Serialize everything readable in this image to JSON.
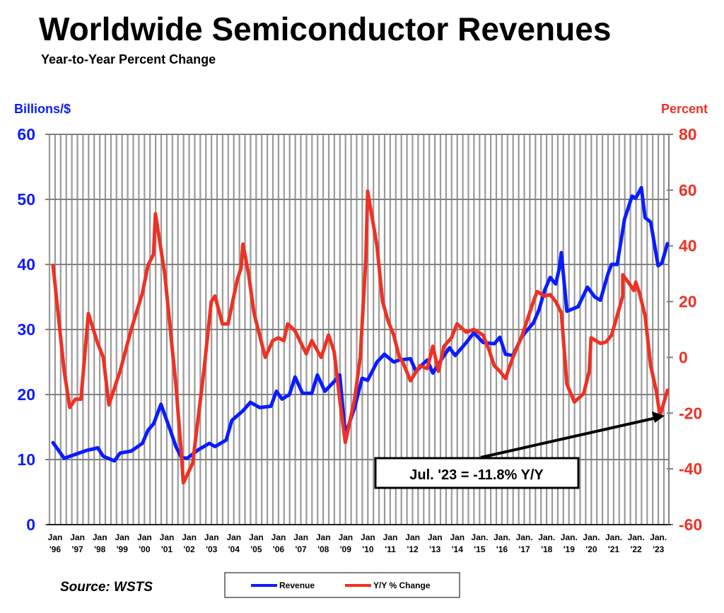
{
  "chart_data": {
    "type": "line",
    "title": "Worldwide Semiconductor Revenues",
    "subtitle": "Year-to-Year Percent Change",
    "ylabel_left": "Billions/$",
    "ylabel_right": "Percent",
    "ylim_left": [
      0,
      60
    ],
    "ylim_right": [
      -60,
      80
    ],
    "yticks_left": [
      "0",
      "10",
      "20",
      "30",
      "40",
      "50",
      "60"
    ],
    "yticks_right": [
      "-60",
      "-40",
      "-20",
      "0",
      "20",
      "40",
      "60",
      "80"
    ],
    "xlim": [
      "1996-01",
      "2023-07"
    ],
    "xticks": [
      [
        "Jan",
        "'96"
      ],
      [
        "Jan",
        "'97"
      ],
      [
        "Jan",
        "'98"
      ],
      [
        "Jan",
        "'99"
      ],
      [
        "Jan",
        "'00"
      ],
      [
        "Jan",
        "'01"
      ],
      [
        "Jan",
        "'02"
      ],
      [
        "Jan",
        "'03"
      ],
      [
        "Jan",
        "'04"
      ],
      [
        "Jan",
        "'05"
      ],
      [
        "Jan",
        "'06"
      ],
      [
        "Jan",
        "'07"
      ],
      [
        "Jan",
        "'08"
      ],
      [
        "Jan",
        "'09"
      ],
      [
        "Jan",
        "'10"
      ],
      [
        "Jan",
        "'11"
      ],
      [
        "Jan",
        "'12"
      ],
      [
        "Jan",
        "'13"
      ],
      [
        "Jan",
        "'14"
      ],
      [
        "Jan.",
        "'15"
      ],
      [
        "Jan.",
        "'16"
      ],
      [
        "Jan.",
        "'17"
      ],
      [
        "Jan.",
        "'18"
      ],
      [
        "Jan.",
        "'19"
      ],
      [
        "Jan.",
        "'20"
      ],
      [
        "Jan.",
        "'21"
      ],
      [
        "Jan.",
        "'22"
      ],
      [
        "Jan.",
        "'23"
      ]
    ],
    "grid": {
      "vertical": "quarterly",
      "horizontal": true
    },
    "legend_placement": "bottom-center",
    "series": [
      {
        "name": "Revenue",
        "axis": "left",
        "color": "#0a1cff",
        "points": [
          [
            "1996-01",
            12.6
          ],
          [
            "1996-07",
            10.2
          ],
          [
            "1997-01",
            10.8
          ],
          [
            "1997-07",
            11.4
          ],
          [
            "1998-01",
            11.8
          ],
          [
            "1998-04",
            10.5
          ],
          [
            "1998-10",
            9.8
          ],
          [
            "1999-01",
            11.0
          ],
          [
            "1999-07",
            11.3
          ],
          [
            "2000-01",
            12.5
          ],
          [
            "2000-04",
            14.5
          ],
          [
            "2000-07",
            15.5
          ],
          [
            "2000-11",
            18.5
          ],
          [
            "2001-04",
            14.5
          ],
          [
            "2001-07",
            12.0
          ],
          [
            "2001-10",
            10.3
          ],
          [
            "2002-01",
            10.2
          ],
          [
            "2002-07",
            11.5
          ],
          [
            "2003-01",
            12.5
          ],
          [
            "2003-04",
            12.0
          ],
          [
            "2003-10",
            13.0
          ],
          [
            "2004-01",
            16.0
          ],
          [
            "2004-07",
            17.5
          ],
          [
            "2004-11",
            18.8
          ],
          [
            "2005-04",
            18.0
          ],
          [
            "2005-10",
            18.2
          ],
          [
            "2006-01",
            20.5
          ],
          [
            "2006-04",
            19.3
          ],
          [
            "2006-08",
            20.0
          ],
          [
            "2006-11",
            22.7
          ],
          [
            "2007-03",
            20.2
          ],
          [
            "2007-08",
            20.2
          ],
          [
            "2007-11",
            23.0
          ],
          [
            "2008-03",
            20.5
          ],
          [
            "2008-08",
            22.0
          ],
          [
            "2008-11",
            23.0
          ],
          [
            "2009-02",
            13.8
          ],
          [
            "2009-07",
            18.0
          ],
          [
            "2009-11",
            22.5
          ],
          [
            "2010-02",
            22.2
          ],
          [
            "2010-07",
            25.0
          ],
          [
            "2010-11",
            26.2
          ],
          [
            "2011-04",
            25.0
          ],
          [
            "2011-07",
            25.3
          ],
          [
            "2012-01",
            25.5
          ],
          [
            "2012-04",
            23.5
          ],
          [
            "2012-07",
            24.5
          ],
          [
            "2012-10",
            25.3
          ],
          [
            "2013-01",
            23.3
          ],
          [
            "2013-07",
            26.0
          ],
          [
            "2013-10",
            27.2
          ],
          [
            "2014-01",
            26.0
          ],
          [
            "2014-07",
            28.0
          ],
          [
            "2014-11",
            29.5
          ],
          [
            "2015-04",
            28.0
          ],
          [
            "2015-10",
            27.8
          ],
          [
            "2016-01",
            28.8
          ],
          [
            "2016-04",
            26.2
          ],
          [
            "2016-08",
            26.0
          ],
          [
            "2017-01",
            29.0
          ],
          [
            "2017-07",
            31.0
          ],
          [
            "2017-10",
            33.0
          ],
          [
            "2018-01",
            36.0
          ],
          [
            "2018-04",
            38.0
          ],
          [
            "2018-07",
            37.0
          ],
          [
            "2018-09",
            39.5
          ],
          [
            "2018-10",
            41.8
          ],
          [
            "2019-01",
            32.8
          ],
          [
            "2019-07",
            33.5
          ],
          [
            "2019-12",
            36.5
          ],
          [
            "2020-04",
            35.0
          ],
          [
            "2020-07",
            34.5
          ],
          [
            "2020-11",
            38.5
          ],
          [
            "2021-01",
            40.0
          ],
          [
            "2021-04",
            40.0
          ],
          [
            "2021-08",
            47.0
          ],
          [
            "2021-12",
            50.5
          ],
          [
            "2022-02",
            50.2
          ],
          [
            "2022-05",
            51.8
          ],
          [
            "2022-07",
            47.2
          ],
          [
            "2022-10",
            46.5
          ],
          [
            "2023-02",
            39.8
          ],
          [
            "2023-04",
            40.2
          ],
          [
            "2023-07",
            43.2
          ]
        ]
      },
      {
        "name": "Y/Y % Change",
        "axis": "right",
        "color": "#ee3124",
        "points": [
          [
            "1996-01",
            33
          ],
          [
            "1996-07",
            -5
          ],
          [
            "1996-10",
            -18
          ],
          [
            "1997-01",
            -15
          ],
          [
            "1997-04",
            -15
          ],
          [
            "1997-08",
            15.7
          ],
          [
            "1998-01",
            5
          ],
          [
            "1998-04",
            0
          ],
          [
            "1998-07",
            -17
          ],
          [
            "1999-01",
            -5
          ],
          [
            "1999-07",
            10
          ],
          [
            "2000-01",
            23
          ],
          [
            "2000-04",
            33
          ],
          [
            "2000-07",
            37
          ],
          [
            "2000-08",
            51.5
          ],
          [
            "2001-01",
            30
          ],
          [
            "2001-07",
            -10
          ],
          [
            "2001-10",
            -35
          ],
          [
            "2001-11",
            -45
          ],
          [
            "2002-04",
            -38
          ],
          [
            "2002-10",
            -5
          ],
          [
            "2003-02",
            20
          ],
          [
            "2003-04",
            22
          ],
          [
            "2003-08",
            12
          ],
          [
            "2003-11",
            12
          ],
          [
            "2004-04",
            28
          ],
          [
            "2004-06",
            32
          ],
          [
            "2004-07",
            40.6
          ],
          [
            "2004-10",
            30
          ],
          [
            "2005-01",
            15.7
          ],
          [
            "2005-07",
            0
          ],
          [
            "2005-11",
            6
          ],
          [
            "2006-02",
            7
          ],
          [
            "2006-05",
            6
          ],
          [
            "2006-07",
            12
          ],
          [
            "2006-11",
            9.5
          ],
          [
            "2007-05",
            1.3
          ],
          [
            "2007-08",
            6
          ],
          [
            "2008-01",
            0
          ],
          [
            "2008-05",
            8
          ],
          [
            "2008-08",
            2
          ],
          [
            "2008-11",
            -15
          ],
          [
            "2009-02",
            -30.5
          ],
          [
            "2009-07",
            -15
          ],
          [
            "2009-10",
            0
          ],
          [
            "2010-01",
            35
          ],
          [
            "2010-02",
            59.6
          ],
          [
            "2010-07",
            40
          ],
          [
            "2010-10",
            20
          ],
          [
            "2011-01",
            13
          ],
          [
            "2011-04",
            8
          ],
          [
            "2011-07",
            0
          ],
          [
            "2011-09",
            -2
          ],
          [
            "2012-01",
            -8.4
          ],
          [
            "2012-06",
            -3
          ],
          [
            "2012-10",
            -4
          ],
          [
            "2013-01",
            4
          ],
          [
            "2013-04",
            -5
          ],
          [
            "2013-07",
            4
          ],
          [
            "2013-11",
            7
          ],
          [
            "2014-02",
            12
          ],
          [
            "2014-07",
            9
          ],
          [
            "2014-11",
            10
          ],
          [
            "2015-04",
            8
          ],
          [
            "2015-07",
            3
          ],
          [
            "2015-10",
            -3
          ],
          [
            "2016-01",
            -5
          ],
          [
            "2016-04",
            -7.6
          ],
          [
            "2016-08",
            0
          ],
          [
            "2017-01",
            8
          ],
          [
            "2017-04",
            14
          ],
          [
            "2017-07",
            20
          ],
          [
            "2017-09",
            23.6
          ],
          [
            "2018-01",
            22
          ],
          [
            "2018-04",
            22.5
          ],
          [
            "2018-07",
            20
          ],
          [
            "2018-10",
            16
          ],
          [
            "2019-01",
            -9.6
          ],
          [
            "2019-05",
            -16
          ],
          [
            "2019-10",
            -13
          ],
          [
            "2020-01",
            -5
          ],
          [
            "2020-02",
            7
          ],
          [
            "2020-07",
            5
          ],
          [
            "2020-10",
            5.5
          ],
          [
            "2021-01",
            8
          ],
          [
            "2021-04",
            15
          ],
          [
            "2021-07",
            22
          ],
          [
            "2021-07",
            29.6
          ],
          [
            "2021-11",
            26
          ],
          [
            "2022-01",
            24
          ],
          [
            "2022-02",
            27
          ],
          [
            "2022-04",
            23
          ],
          [
            "2022-07",
            15
          ],
          [
            "2022-10",
            -3
          ],
          [
            "2023-01",
            -12
          ],
          [
            "2023-03",
            -21
          ],
          [
            "2023-07",
            -11.8
          ]
        ]
      }
    ],
    "annotation": "Jul. '23 = -11.8% Y/Y"
  },
  "source": "Source: WSTS"
}
